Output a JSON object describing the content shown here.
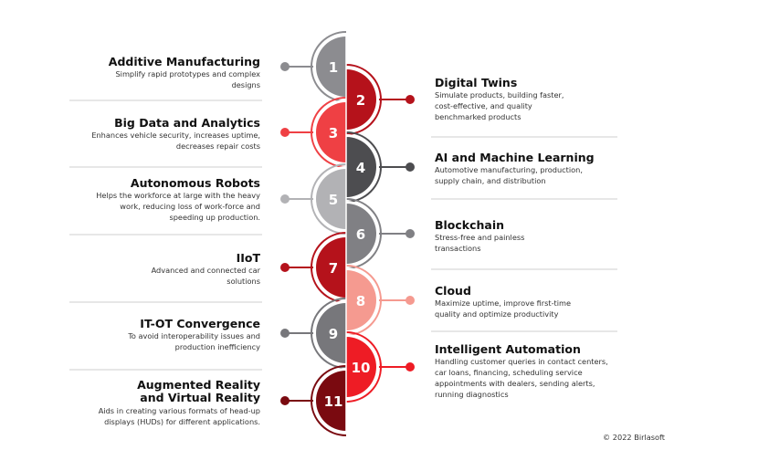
{
  "items": [
    {
      "num": "1",
      "side": "left",
      "color": "#8c8c90",
      "title": "Additive Manufacturing",
      "desc": "Simplify rapid prototypes and complex designs"
    },
    {
      "num": "2",
      "side": "right",
      "color": "#b5121b",
      "title": "Digital Twins",
      "desc": "Simulate products, building faster, cost-effective, and quality benchmarked products"
    },
    {
      "num": "3",
      "side": "left",
      "color": "#ef4044",
      "title": "Big Data and Analytics",
      "desc": "Enhances vehicle security, increases uptime, decreases repair costs"
    },
    {
      "num": "4",
      "side": "right",
      "color": "#4d4d50",
      "title": "AI and Machine Learning",
      "desc": "Automotive manufacturing, production, supply chain, and distribution"
    },
    {
      "num": "5",
      "side": "left",
      "color": "#b2b2b5",
      "title": "Autonomous Robots",
      "desc": "Helps the workforce at large with the heavy work, reducing loss of work-force and speeding up production."
    },
    {
      "num": "6",
      "side": "right",
      "color": "#808084",
      "title": "Blockchain",
      "desc": "Stress-free and painless transactions"
    },
    {
      "num": "7",
      "side": "left",
      "color": "#b5121b",
      "title": "IIoT",
      "desc": "Advanced and connected car solutions"
    },
    {
      "num": "8",
      "side": "right",
      "color": "#f59a90",
      "title": "Cloud",
      "desc": "Maximize uptime, improve first-time quality and optimize productivity"
    },
    {
      "num": "9",
      "side": "left",
      "color": "#77777b",
      "title": "IT-OT Convergence",
      "desc": "To avoid interoperability issues and production inefficiency"
    },
    {
      "num": "10",
      "side": "right",
      "color": "#ee1c25",
      "title": "Intelligent Automation",
      "desc": "Handling customer queries in contact centers, car loans, financing, scheduling service appointments with dealers, sending alerts, running diagnostics"
    },
    {
      "num": "11",
      "side": "left",
      "color": "#7a0a10",
      "title": "Augmented Reality and Virtual Reality",
      "desc": "Aids in creating various formats of head-up displays (HUDs) for different applications."
    }
  ],
  "copyright": "© 2022 Birlasoft"
}
